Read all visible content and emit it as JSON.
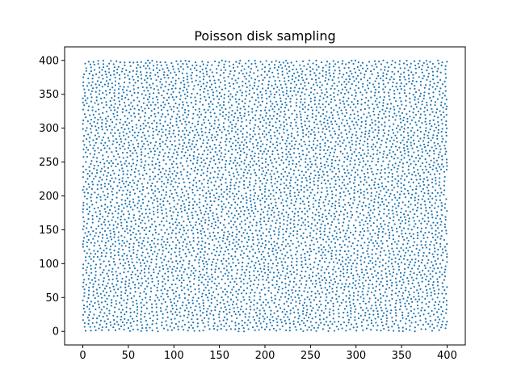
{
  "chart_data": {
    "type": "scatter",
    "title": "Poisson disk sampling",
    "xlabel": "",
    "ylabel": "",
    "xlim": [
      -20,
      420
    ],
    "ylim": [
      -20,
      420
    ],
    "xticks": [
      0,
      50,
      100,
      150,
      200,
      250,
      300,
      350,
      400
    ],
    "yticks": [
      0,
      50,
      100,
      150,
      200,
      250,
      300,
      350,
      400
    ],
    "xtick_labels": [
      "0",
      "50",
      "100",
      "150",
      "200",
      "250",
      "300",
      "350",
      "400"
    ],
    "ytick_labels": [
      "0",
      "50",
      "100",
      "150",
      "200",
      "250",
      "300",
      "350",
      "400"
    ],
    "grid": false,
    "legend": "none",
    "marker_color": "#1f77b4",
    "point_region": {
      "x": [
        0,
        400
      ],
      "y": [
        0,
        400
      ]
    },
    "min_point_distance": 4,
    "series": [
      {
        "points": "dense Poisson-disk distributed samples filling the square 0–400 × 0–400"
      }
    ]
  }
}
